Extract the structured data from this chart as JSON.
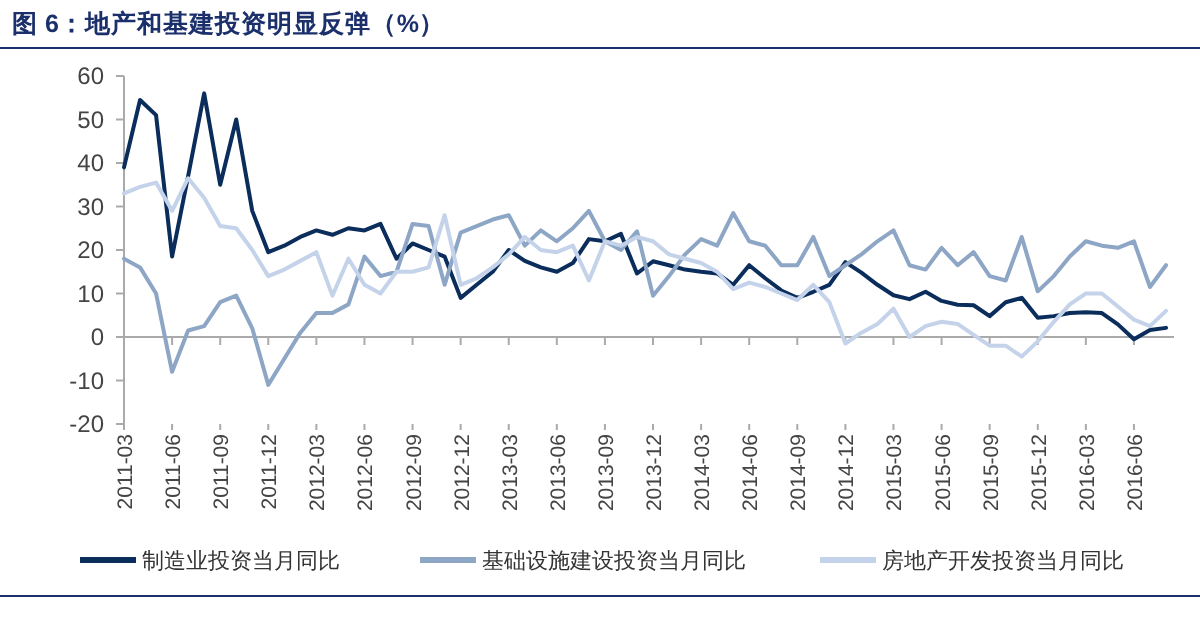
{
  "chart_data": {
    "type": "line",
    "title": "图 6：地产和基建投资明显反弹（%）",
    "categories": [
      "2011-03",
      null,
      null,
      "2011-06",
      null,
      null,
      "2011-09",
      null,
      null,
      "2011-12",
      null,
      null,
      "2012-03",
      null,
      null,
      "2012-06",
      null,
      null,
      "2012-09",
      null,
      null,
      "2012-12",
      null,
      null,
      "2013-03",
      null,
      null,
      "2013-06",
      null,
      null,
      "2013-09",
      null,
      null,
      "2013-12",
      null,
      null,
      "2014-03",
      null,
      null,
      "2014-06",
      null,
      null,
      "2014-09",
      null,
      null,
      "2014-12",
      null,
      null,
      "2015-03",
      null,
      null,
      "2015-06",
      null,
      null,
      "2015-09",
      null,
      null,
      "2015-12",
      null,
      null,
      "2016-03",
      null,
      null,
      "2016-06",
      null,
      null
    ],
    "series": [
      {
        "name": "制造业投资当月同比",
        "color": "#0b2d5b",
        "values": [
          39,
          54.5,
          51,
          18.5,
          37,
          56,
          35,
          50,
          29,
          19.5,
          21,
          23,
          24.5,
          23.5,
          25,
          24.5,
          26,
          18,
          21.5,
          20,
          18.5,
          9,
          12,
          15,
          20,
          17.5,
          16,
          15,
          17,
          22.5,
          22,
          23.7,
          14.6,
          17.4,
          16.5,
          15.5,
          15,
          14.6,
          12,
          16.5,
          13.5,
          10.7,
          9,
          10.4,
          12,
          17.2,
          14.8,
          12,
          9.6,
          8.7,
          10.4,
          8.3,
          7.4,
          7.3,
          4.8,
          8,
          9,
          4.4,
          4.8,
          5.5,
          5.7,
          5.5,
          2.9,
          -0.5,
          1.6,
          2.1
        ]
      },
      {
        "name": "基础设施建设投资当月同比",
        "color": "#8ea6c6",
        "values": [
          18,
          16,
          10,
          -8,
          1.5,
          2.5,
          8,
          9.5,
          2,
          -11,
          -5,
          1,
          5.5,
          5.5,
          7.5,
          18.5,
          14,
          15,
          26,
          25.5,
          12,
          24,
          25.5,
          27,
          28,
          21,
          24.5,
          22,
          25,
          29,
          22,
          20,
          24.3,
          9.5,
          14,
          19,
          22.5,
          21,
          28.5,
          22,
          21,
          16.5,
          16.5,
          23,
          14,
          16.5,
          19,
          22,
          24.5,
          16.5,
          15.5,
          20.5,
          16.5,
          19.5,
          14,
          13,
          23,
          10.5,
          14,
          18.5,
          22,
          21,
          20.5,
          22,
          11.5,
          16.5
        ]
      },
      {
        "name": "房地产开发投资当月同比",
        "color": "#c4d3ea",
        "values": [
          33,
          34.5,
          35.5,
          29,
          36.5,
          32,
          25.5,
          25,
          20,
          14,
          15.5,
          17.5,
          19.5,
          9.5,
          18,
          12,
          10,
          15,
          15,
          16,
          28,
          12,
          13.5,
          16,
          19,
          23,
          20,
          19.5,
          21,
          13,
          22,
          21,
          23,
          22,
          19,
          18,
          17,
          15,
          11,
          12.5,
          11.5,
          10,
          8.5,
          12,
          8,
          -1.5,
          1,
          3,
          6.5,
          0,
          2.5,
          3.5,
          3,
          0.5,
          -2,
          -2,
          -4.5,
          -1,
          3.5,
          7.5,
          10,
          10,
          7,
          4,
          2.5,
          6
        ]
      }
    ],
    "ylim": [
      -20,
      60
    ],
    "yticks": [
      -20,
      -10,
      0,
      10,
      20,
      30,
      40,
      50,
      60
    ],
    "ref_lines": [
      {
        "axis": "y",
        "value": 0,
        "color": "#aaaaaa",
        "line_style": "solid"
      }
    ],
    "legend": "bottom",
    "grid": false,
    "marker": "none",
    "line_style": "solid"
  }
}
